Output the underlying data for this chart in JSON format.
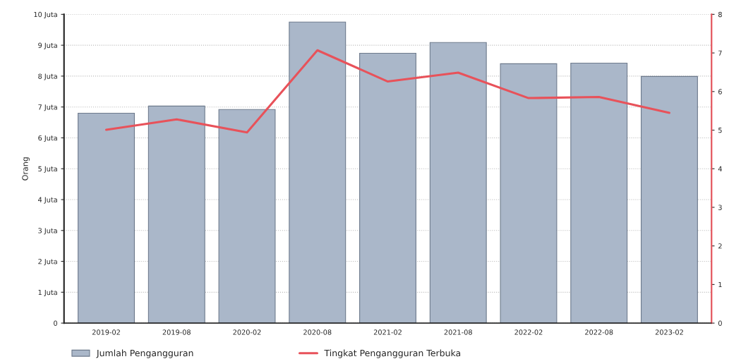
{
  "chart_data": {
    "type": "bar",
    "ylabel": "Orang",
    "categories": [
      "2019-02",
      "2019-08",
      "2020-02",
      "2020-08",
      "2021-02",
      "2021-08",
      "2022-02",
      "2022-08",
      "2023-02"
    ],
    "series": [
      {
        "name": "Jumlah Pengangguran",
        "color": "#aab7c9",
        "values": [
          6.8,
          7.03,
          6.92,
          9.75,
          8.74,
          9.09,
          8.4,
          8.42,
          7.99
        ]
      },
      {
        "name": "Tingkat Pengangguran Terbuka",
        "type": "line",
        "axis": "y2",
        "color": "#e8525a",
        "values": [
          5.01,
          5.28,
          4.94,
          7.07,
          6.26,
          6.49,
          5.83,
          5.86,
          5.45
        ]
      }
    ],
    "ylim": [
      0,
      10
    ],
    "yticks": [
      0,
      {
        "value": 1,
        "label": "1 Juta"
      },
      {
        "value": 2,
        "label": "2 Juta"
      },
      {
        "value": 3,
        "label": "3 Juta"
      },
      {
        "value": 4,
        "label": "4 Juta"
      },
      {
        "value": 5,
        "label": "5 Juta"
      },
      {
        "value": 6,
        "label": "6 Juta"
      },
      {
        "value": 7,
        "label": "7 Juta"
      },
      {
        "value": 8,
        "label": "8 Juta"
      },
      {
        "value": 9,
        "label": "9 Juta"
      },
      {
        "value": 10,
        "label": "10 Juta"
      }
    ],
    "y2lim": [
      0,
      8
    ],
    "y2ticks": [
      0,
      1,
      2,
      3,
      4,
      5,
      6,
      7,
      8
    ],
    "grid": "y",
    "legend": "bottom left"
  }
}
